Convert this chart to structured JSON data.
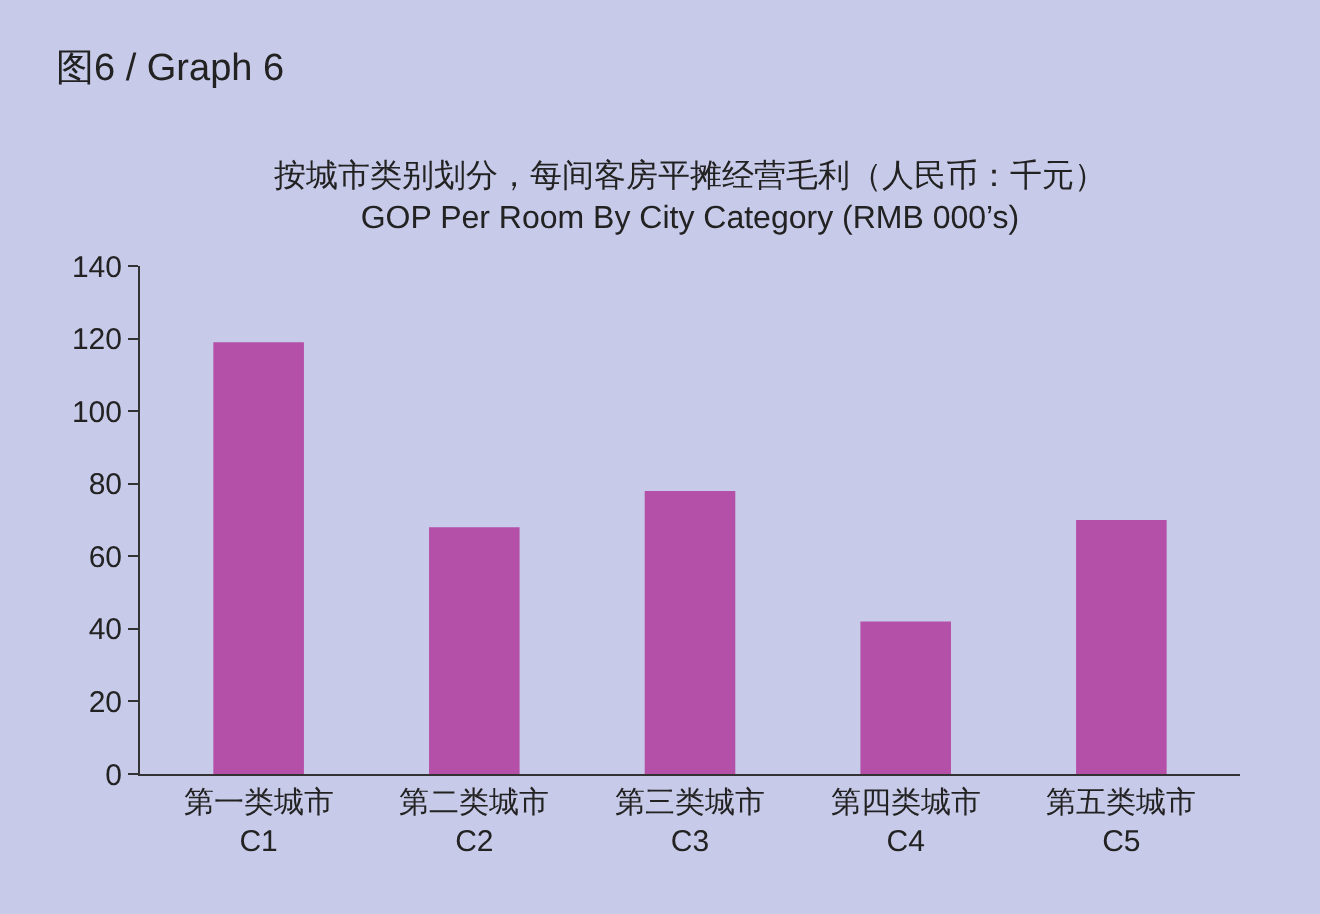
{
  "chart_data": {
    "type": "bar",
    "title": "图6 / Graph 6",
    "subtitle": "按城市类别划分，每间客房平摊经营毛利（人民币：千元）\nGOP Per Room By City Category (RMB 000’s)",
    "categories": [
      "第一类城市\nC1",
      "第二类城市\nC2",
      "第三类城市\nC3",
      "第四类城市\nC4",
      "第五类城市\nC5"
    ],
    "values": [
      119,
      68,
      78,
      42,
      70
    ],
    "color": "#b550a8",
    "ylim": [
      0,
      140
    ],
    "yticks": [
      0,
      20,
      40,
      60,
      80,
      100,
      120,
      140
    ],
    "grid": false
  }
}
